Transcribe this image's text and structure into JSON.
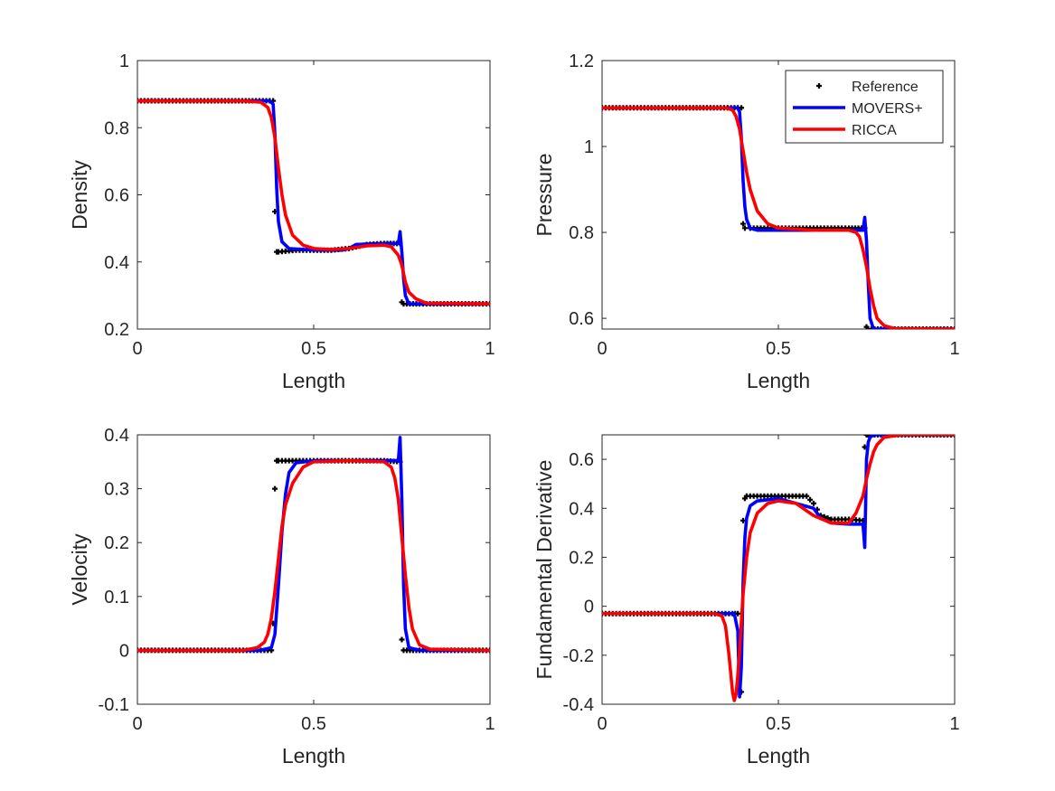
{
  "figure": {
    "background": "#ffffff"
  },
  "styles": {
    "reference_color": "#000000",
    "movers_color": "#0000ff",
    "ricca_color": "#ff0000"
  },
  "legend": {
    "location": "top-right of Pressure panel",
    "entries": [
      {
        "label": "Reference",
        "style": "markers",
        "color": "#000000"
      },
      {
        "label": "MOVERS+",
        "style": "line",
        "color": "#0000ff"
      },
      {
        "label": "RICCA",
        "style": "line",
        "color": "#ff0000"
      }
    ]
  },
  "chart_data": [
    {
      "type": "line",
      "id": "density",
      "title": "",
      "xlabel": "Length",
      "ylabel": "Density",
      "xlim": [
        0,
        1
      ],
      "ylim": [
        0.2,
        1
      ],
      "xticks": [
        0,
        0.5,
        1
      ],
      "xtick_labels": [
        "0",
        "0.5",
        "1"
      ],
      "yticks": [
        0.2,
        0.4,
        0.6,
        0.8,
        1
      ],
      "ytick_labels": [
        "0.2",
        "0.4",
        "0.6",
        "0.8",
        "1"
      ],
      "series": [
        {
          "name": "Reference",
          "x": [
            0,
            0.2,
            0.385,
            0.39,
            0.395,
            0.4,
            0.45,
            0.55,
            0.6,
            0.65,
            0.7,
            0.745,
            0.75,
            0.755,
            0.8,
            0.9,
            1.0
          ],
          "y": [
            0.88,
            0.88,
            0.88,
            0.55,
            0.43,
            0.43,
            0.435,
            0.435,
            0.44,
            0.452,
            0.455,
            0.455,
            0.28,
            0.275,
            0.275,
            0.275,
            0.275
          ]
        },
        {
          "name": "MOVERS+",
          "x": [
            0,
            0.3,
            0.375,
            0.385,
            0.39,
            0.395,
            0.4,
            0.41,
            0.43,
            0.5,
            0.58,
            0.6,
            0.62,
            0.7,
            0.74,
            0.745,
            0.75,
            0.755,
            0.76,
            0.77,
            0.8,
            1.0
          ],
          "y": [
            0.88,
            0.88,
            0.88,
            0.87,
            0.78,
            0.62,
            0.52,
            0.46,
            0.44,
            0.435,
            0.435,
            0.44,
            0.452,
            0.455,
            0.455,
            0.49,
            0.43,
            0.35,
            0.3,
            0.275,
            0.275,
            0.275
          ]
        },
        {
          "name": "RICCA",
          "x": [
            0,
            0.3,
            0.35,
            0.37,
            0.38,
            0.39,
            0.4,
            0.41,
            0.42,
            0.44,
            0.47,
            0.5,
            0.55,
            0.6,
            0.65,
            0.7,
            0.72,
            0.74,
            0.75,
            0.76,
            0.77,
            0.79,
            0.82,
            1.0
          ],
          "y": [
            0.88,
            0.88,
            0.876,
            0.86,
            0.83,
            0.77,
            0.68,
            0.6,
            0.54,
            0.48,
            0.45,
            0.44,
            0.437,
            0.44,
            0.448,
            0.45,
            0.445,
            0.42,
            0.39,
            0.34,
            0.31,
            0.29,
            0.277,
            0.275
          ]
        }
      ]
    },
    {
      "type": "line",
      "id": "pressure",
      "title": "",
      "xlabel": "Length",
      "ylabel": "Pressure",
      "xlim": [
        0,
        1
      ],
      "ylim": [
        0.575,
        1.2
      ],
      "xticks": [
        0,
        0.5,
        1
      ],
      "xtick_labels": [
        "0",
        "0.5",
        "1"
      ],
      "yticks": [
        0.6,
        0.8,
        1.0,
        1.2
      ],
      "ytick_labels": [
        "0.6",
        "0.8",
        "1",
        "1.2"
      ],
      "series": [
        {
          "name": "Reference",
          "x": [
            0,
            0.2,
            0.395,
            0.4,
            0.405,
            0.42,
            0.5,
            0.6,
            0.7,
            0.745,
            0.75,
            0.755,
            0.8,
            1.0
          ],
          "y": [
            1.09,
            1.09,
            1.09,
            0.82,
            0.81,
            0.81,
            0.81,
            0.81,
            0.81,
            0.81,
            0.58,
            0.575,
            0.575,
            0.575
          ]
        },
        {
          "name": "MOVERS+",
          "x": [
            0,
            0.35,
            0.385,
            0.39,
            0.395,
            0.4,
            0.405,
            0.41,
            0.42,
            0.44,
            0.5,
            0.6,
            0.7,
            0.74,
            0.745,
            0.75,
            0.755,
            0.76,
            0.77,
            0.8,
            1.0
          ],
          "y": [
            1.09,
            1.09,
            1.09,
            1.08,
            1.02,
            0.92,
            0.86,
            0.83,
            0.81,
            0.805,
            0.805,
            0.805,
            0.805,
            0.805,
            0.835,
            0.78,
            0.68,
            0.6,
            0.575,
            0.575,
            0.575
          ]
        },
        {
          "name": "RICCA",
          "x": [
            0,
            0.35,
            0.37,
            0.38,
            0.39,
            0.4,
            0.41,
            0.42,
            0.44,
            0.47,
            0.5,
            0.6,
            0.7,
            0.72,
            0.73,
            0.74,
            0.75,
            0.76,
            0.77,
            0.78,
            0.8,
            0.83,
            1.0
          ],
          "y": [
            1.09,
            1.09,
            1.085,
            1.07,
            1.04,
            0.99,
            0.94,
            0.9,
            0.85,
            0.82,
            0.81,
            0.805,
            0.805,
            0.8,
            0.79,
            0.76,
            0.72,
            0.67,
            0.63,
            0.6,
            0.583,
            0.576,
            0.575
          ]
        }
      ]
    },
    {
      "type": "line",
      "id": "velocity",
      "title": "",
      "xlabel": "Length",
      "ylabel": "Velocity",
      "xlim": [
        0,
        1
      ],
      "ylim": [
        -0.1,
        0.4
      ],
      "xticks": [
        0,
        0.5,
        1
      ],
      "xtick_labels": [
        "0",
        "0.5",
        "1"
      ],
      "yticks": [
        -0.1,
        0,
        0.1,
        0.2,
        0.3,
        0.4
      ],
      "ytick_labels": [
        "-0.1",
        "0",
        "0.1",
        "0.2",
        "0.3",
        "0.4"
      ],
      "series": [
        {
          "name": "Reference",
          "x": [
            0,
            0.2,
            0.38,
            0.385,
            0.39,
            0.395,
            0.4,
            0.45,
            0.55,
            0.65,
            0.7,
            0.745,
            0.75,
            0.755,
            0.8,
            0.9,
            1.0
          ],
          "y": [
            0,
            0,
            0,
            0.05,
            0.3,
            0.352,
            0.352,
            0.352,
            0.352,
            0.352,
            0.352,
            0.35,
            0.02,
            0,
            0,
            0,
            0
          ]
        },
        {
          "name": "MOVERS+",
          "x": [
            0,
            0.35,
            0.38,
            0.39,
            0.4,
            0.41,
            0.42,
            0.43,
            0.45,
            0.5,
            0.6,
            0.7,
            0.74,
            0.745,
            0.75,
            0.755,
            0.76,
            0.77,
            0.8,
            1.0
          ],
          "y": [
            0,
            0,
            0.005,
            0.03,
            0.12,
            0.22,
            0.29,
            0.33,
            0.348,
            0.352,
            0.352,
            0.352,
            0.352,
            0.395,
            0.28,
            0.12,
            0.04,
            0.005,
            0,
            0
          ]
        },
        {
          "name": "RICCA",
          "x": [
            0,
            0.3,
            0.34,
            0.36,
            0.37,
            0.38,
            0.39,
            0.4,
            0.41,
            0.42,
            0.44,
            0.47,
            0.5,
            0.6,
            0.7,
            0.72,
            0.73,
            0.74,
            0.75,
            0.76,
            0.77,
            0.78,
            0.8,
            0.83,
            1.0
          ],
          "y": [
            0,
            0,
            0.005,
            0.015,
            0.03,
            0.06,
            0.11,
            0.17,
            0.23,
            0.27,
            0.31,
            0.34,
            0.35,
            0.352,
            0.35,
            0.34,
            0.32,
            0.28,
            0.21,
            0.14,
            0.08,
            0.04,
            0.01,
            0.002,
            0
          ]
        }
      ]
    },
    {
      "type": "line",
      "id": "fundamental-derivative",
      "title": "",
      "xlabel": "Length",
      "ylabel": "Fundamental Derivative",
      "xlim": [
        0,
        1
      ],
      "ylim": [
        -0.4,
        0.7
      ],
      "xticks": [
        0,
        0.5,
        1
      ],
      "xtick_labels": [
        "0",
        "0.5",
        "1"
      ],
      "yticks": [
        -0.4,
        -0.2,
        0,
        0.2,
        0.4,
        0.6
      ],
      "ytick_labels": [
        "-0.4",
        "-0.2",
        "0",
        "0.2",
        "0.4",
        "0.6"
      ],
      "series": [
        {
          "name": "Reference",
          "x": [
            0,
            0.2,
            0.37,
            0.385,
            0.39,
            0.395,
            0.4,
            0.405,
            0.41,
            0.42,
            0.5,
            0.58,
            0.6,
            0.62,
            0.65,
            0.7,
            0.74,
            0.745,
            0.75,
            0.755,
            0.8,
            0.9,
            1.0
          ],
          "y": [
            -0.03,
            -0.03,
            -0.03,
            -0.03,
            -0.2,
            -0.35,
            0.35,
            0.44,
            0.45,
            0.45,
            0.45,
            0.45,
            0.42,
            0.37,
            0.355,
            0.355,
            0.35,
            0.65,
            0.7,
            0.7,
            0.7,
            0.7,
            0.7
          ]
        },
        {
          "name": "MOVERS+",
          "x": [
            0,
            0.36,
            0.375,
            0.385,
            0.39,
            0.395,
            0.4,
            0.405,
            0.41,
            0.42,
            0.44,
            0.5,
            0.6,
            0.62,
            0.65,
            0.7,
            0.74,
            0.745,
            0.748,
            0.75,
            0.755,
            0.76,
            0.77,
            0.8,
            1.0
          ],
          "y": [
            -0.03,
            -0.03,
            -0.03,
            -0.1,
            -0.37,
            -0.25,
            0.1,
            0.28,
            0.36,
            0.41,
            0.43,
            0.44,
            0.4,
            0.36,
            0.34,
            0.335,
            0.335,
            0.24,
            0.45,
            0.6,
            0.67,
            0.69,
            0.7,
            0.7,
            0.7
          ]
        },
        {
          "name": "RICCA",
          "x": [
            0,
            0.32,
            0.34,
            0.35,
            0.36,
            0.37,
            0.375,
            0.38,
            0.385,
            0.39,
            0.4,
            0.41,
            0.42,
            0.44,
            0.47,
            0.5,
            0.55,
            0.6,
            0.65,
            0.7,
            0.72,
            0.74,
            0.75,
            0.76,
            0.77,
            0.78,
            0.8,
            0.85,
            1.0
          ],
          "y": [
            -0.03,
            -0.03,
            -0.04,
            -0.08,
            -0.2,
            -0.35,
            -0.385,
            -0.36,
            -0.28,
            -0.18,
            0.05,
            0.2,
            0.3,
            0.38,
            0.42,
            0.43,
            0.42,
            0.37,
            0.34,
            0.34,
            0.38,
            0.45,
            0.52,
            0.58,
            0.63,
            0.66,
            0.69,
            0.7,
            0.7
          ]
        }
      ]
    }
  ]
}
